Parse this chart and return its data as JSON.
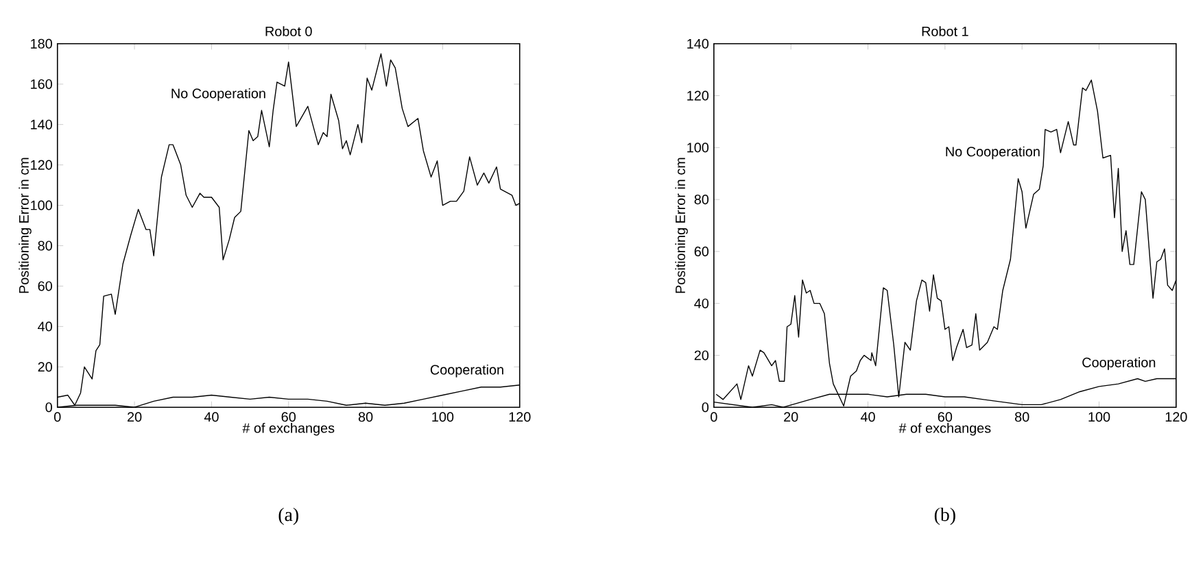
{
  "chart_data": [
    {
      "type": "line",
      "title": "Robot 0",
      "xlabel": "# of exchanges",
      "ylabel": "Positioning Error in cm",
      "xlim": [
        0,
        120
      ],
      "ylim": [
        0,
        180
      ],
      "xticks": [
        0,
        20,
        40,
        60,
        80,
        100,
        120
      ],
      "yticks": [
        0,
        20,
        40,
        60,
        80,
        100,
        120,
        140,
        160,
        180
      ],
      "annotations": [
        "(a)"
      ],
      "series": [
        {
          "name": "No Cooperation",
          "color": "#000000",
          "x": [
            0,
            2.7,
            4.5,
            6,
            7,
            9,
            10,
            11,
            12,
            14,
            15,
            17,
            19,
            21,
            23,
            24,
            25,
            27,
            29,
            30,
            32,
            33.4,
            35,
            37,
            38,
            40,
            42,
            43,
            44.6,
            46,
            47.6,
            49.7,
            50.8,
            52,
            53,
            55,
            56,
            57,
            59,
            60,
            62,
            65,
            67.7,
            69,
            70,
            71,
            73,
            74,
            75,
            76,
            78,
            79,
            80.4,
            81.6,
            84,
            85.4,
            86.5,
            87.7,
            89.5,
            91,
            93.6,
            95,
            97,
            98.6,
            100,
            102,
            103.6,
            105.5,
            107,
            109,
            110.7,
            112,
            114,
            115,
            118,
            119,
            120
          ],
          "values": [
            5,
            6,
            1,
            7,
            20,
            14,
            28,
            31,
            55,
            56,
            46,
            71,
            85,
            98,
            88,
            88,
            75,
            114,
            130,
            130,
            120,
            105,
            99,
            106,
            104,
            104,
            99,
            73,
            83,
            94,
            97,
            137,
            132,
            134,
            147,
            129,
            147,
            161,
            159,
            171,
            139,
            149,
            130,
            136,
            134,
            155,
            142,
            128,
            132,
            125,
            140,
            131,
            163,
            157,
            175,
            159,
            172,
            168,
            148,
            139,
            143,
            127,
            114,
            122,
            100,
            102,
            102,
            107,
            124,
            110,
            116,
            111,
            119,
            108,
            105,
            100,
            101
          ]
        },
        {
          "name": "Cooperation",
          "color": "#000000",
          "x": [
            0,
            5,
            10,
            15,
            20,
            25,
            30,
            35,
            40,
            45,
            50,
            55,
            60,
            65,
            70,
            75,
            80,
            85,
            90,
            95,
            100,
            105,
            110,
            115,
            120
          ],
          "values": [
            0,
            1,
            1,
            1,
            0,
            3,
            5,
            5,
            6,
            5,
            4,
            5,
            4,
            4,
            3,
            1,
            2,
            1,
            2,
            4,
            6,
            8,
            10,
            10,
            11
          ]
        }
      ]
    },
    {
      "type": "line",
      "title": "Robot 1",
      "xlabel": "# of exchanges",
      "ylabel": "Positioning Error in cm",
      "xlim": [
        0,
        120
      ],
      "ylim": [
        0,
        140
      ],
      "xticks": [
        0,
        20,
        40,
        60,
        80,
        100,
        120
      ],
      "yticks": [
        0,
        20,
        40,
        60,
        80,
        100,
        120,
        140
      ],
      "annotations": [
        "(b)"
      ],
      "series": [
        {
          "name": "No Cooperation",
          "color": "#000000",
          "x": [
            0.6,
            2.4,
            6,
            7,
            9,
            10,
            12,
            13,
            15,
            16,
            17,
            18.3,
            19,
            20,
            21,
            22,
            23,
            24,
            25,
            26,
            27.5,
            28.7,
            30,
            31,
            33.7,
            35.5,
            37,
            38,
            39,
            40.8,
            41,
            42,
            44,
            45,
            46.7,
            48,
            49.6,
            51,
            52.6,
            54,
            55,
            56,
            57,
            58,
            59,
            60,
            61,
            62,
            63,
            64.7,
            65.6,
            67,
            68,
            69,
            71,
            72.7,
            73.6,
            75,
            77,
            79,
            80,
            81,
            83,
            84.5,
            85.5,
            86,
            87.5,
            89,
            90,
            92,
            93.4,
            94,
            95.7,
            96.6,
            98,
            99.6,
            101,
            103,
            104,
            105,
            106,
            107,
            108,
            109,
            111,
            112,
            113,
            114,
            115,
            116,
            117,
            117.8,
            119,
            120
          ],
          "values": [
            5,
            3,
            9,
            3,
            16,
            12,
            22,
            21,
            16,
            18,
            10,
            10,
            31,
            32,
            43,
            27,
            49,
            44,
            45,
            40,
            40,
            36,
            17,
            9,
            0.5,
            12,
            14,
            18,
            20,
            18,
            21,
            16,
            46,
            45,
            24,
            4,
            25,
            22,
            41,
            49,
            48,
            37,
            51,
            42,
            41,
            30,
            31,
            18,
            23,
            30,
            23,
            24,
            36,
            22,
            25,
            31,
            30,
            45,
            57,
            88,
            83,
            69,
            82,
            84,
            93,
            107,
            106,
            107,
            98,
            110,
            101,
            101,
            123,
            122,
            126,
            114,
            96,
            97,
            73,
            92,
            60,
            68,
            55,
            55,
            83,
            80,
            61,
            42,
            56,
            57,
            61,
            47,
            45,
            49
          ]
        },
        {
          "name": "Cooperation",
          "color": "#000000",
          "x": [
            0,
            10,
            15,
            18,
            25,
            30,
            35,
            40,
            45,
            50,
            55,
            60,
            65,
            70,
            75,
            80,
            85,
            90,
            95,
            100,
            105,
            110,
            112,
            115,
            120
          ],
          "values": [
            2,
            0,
            1,
            0,
            3,
            5,
            5,
            5,
            4,
            5,
            5,
            4,
            4,
            3,
            2,
            1,
            1,
            3,
            6,
            8,
            9,
            11,
            10,
            11,
            11
          ]
        }
      ]
    }
  ]
}
